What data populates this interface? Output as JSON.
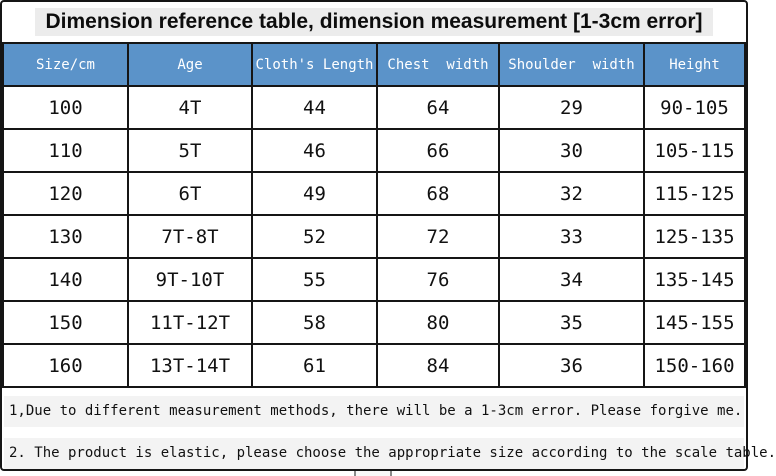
{
  "title": "Dimension reference table, dimension measurement [1-3cm error]",
  "table": {
    "columns": [
      "Size/cm",
      "Age",
      "Cloth's Length",
      "Chest  width",
      "Shoulder  width",
      "Height"
    ],
    "rows": [
      [
        "100",
        "4T",
        "44",
        "64",
        "29",
        "90-105"
      ],
      [
        "110",
        "5T",
        "46",
        "66",
        "30",
        "105-115"
      ],
      [
        "120",
        "6T",
        "49",
        "68",
        "32",
        "115-125"
      ],
      [
        "130",
        "7T-8T",
        "52",
        "72",
        "33",
        "125-135"
      ],
      [
        "140",
        "9T-10T",
        "55",
        "76",
        "34",
        "135-145"
      ],
      [
        "150",
        "11T-12T",
        "58",
        "80",
        "35",
        "145-155"
      ],
      [
        "160",
        "13T-14T",
        "61",
        "84",
        "36",
        "150-160"
      ]
    ]
  },
  "notes": [
    "1,Due to different measurement methods, there will be a 1-3cm error. Please forgive me.",
    "2. The product is elastic, please choose the appropriate size according to the scale table."
  ],
  "colors": {
    "header_bg": "#5b93c9",
    "header_text": "#ffffff",
    "border": "#151515",
    "note_bg": "#f3f3f3",
    "title_highlight_bg": "#ececec"
  }
}
